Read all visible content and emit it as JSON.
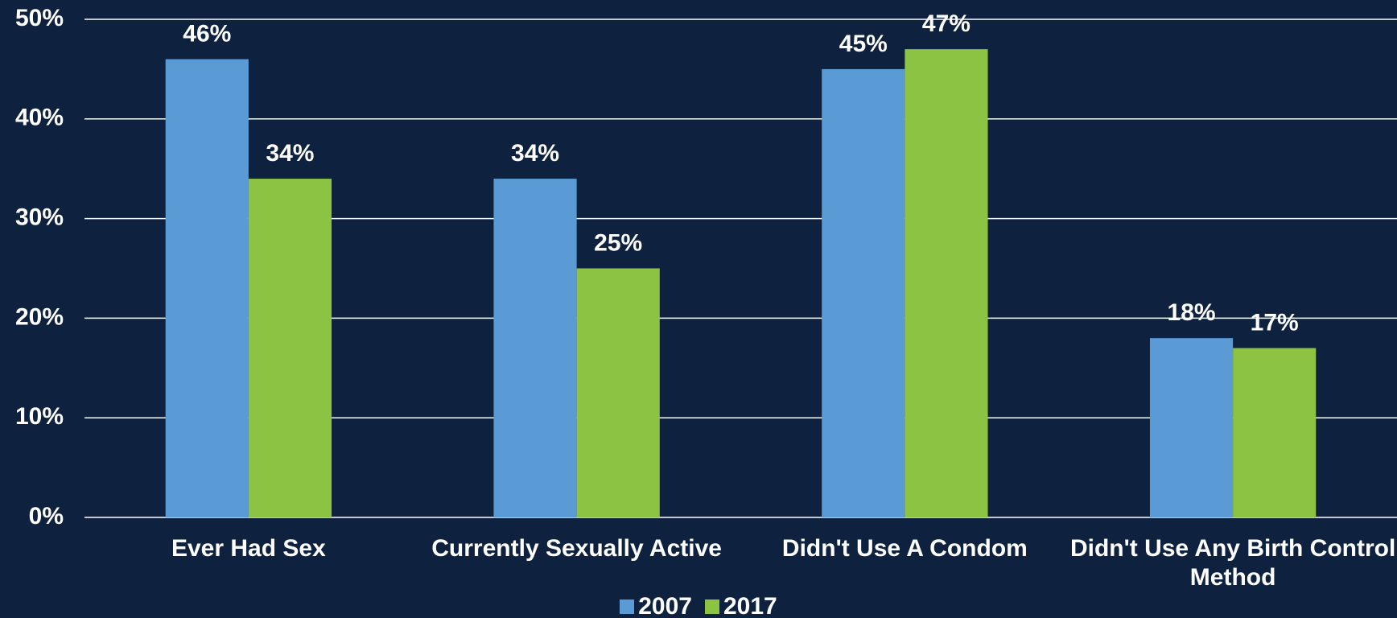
{
  "chart_data": {
    "type": "bar",
    "categories": [
      "Ever Had Sex",
      "Currently Sexually Active",
      "Didn't Use A Condom",
      "Didn't Use Any Birth Control Method"
    ],
    "series": [
      {
        "name": "2007",
        "color": "#5b9bd5",
        "values": [
          46,
          34,
          45,
          18
        ],
        "value_labels": [
          "46%",
          "34%",
          "45%",
          "18%"
        ]
      },
      {
        "name": "2017",
        "color": "#8dc343",
        "values": [
          34,
          25,
          47,
          17
        ],
        "value_labels": [
          "34%",
          "25%",
          "47%",
          "17%"
        ]
      }
    ],
    "ylim": [
      0,
      50
    ],
    "yticks": [
      {
        "value": 0,
        "label": "0%"
      },
      {
        "value": 10,
        "label": "10%"
      },
      {
        "value": 20,
        "label": "20%"
      },
      {
        "value": 30,
        "label": "30%"
      },
      {
        "value": 40,
        "label": "40%"
      },
      {
        "value": 50,
        "label": "50%"
      }
    ],
    "grid": true,
    "legend": "bottom"
  }
}
